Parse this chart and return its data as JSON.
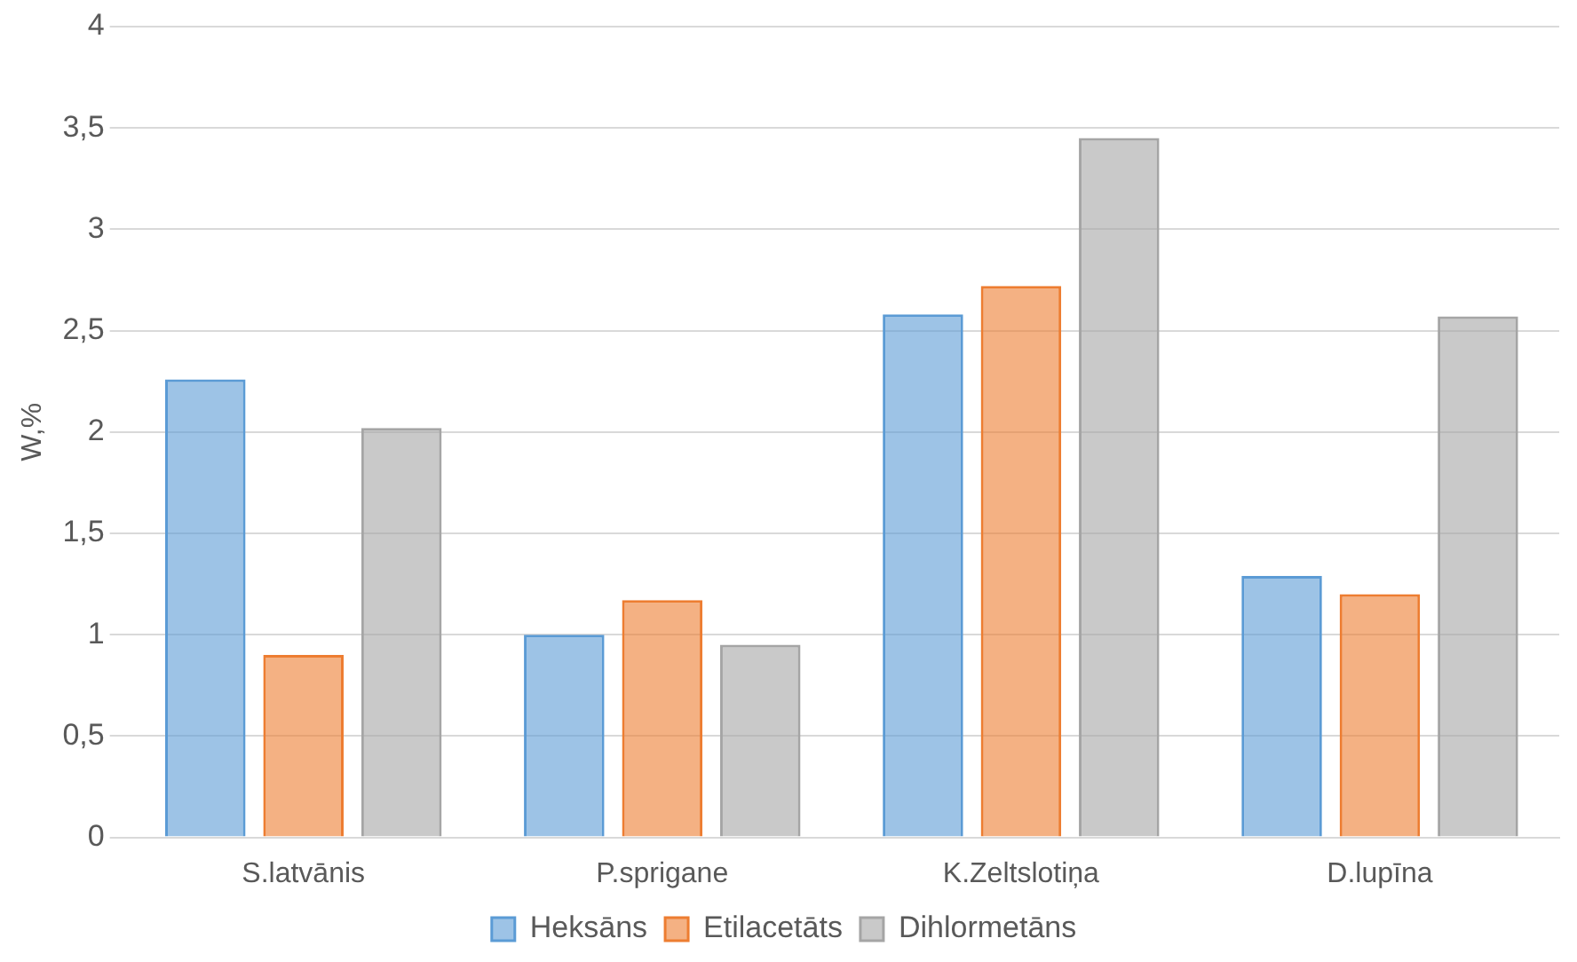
{
  "chart_data": {
    "type": "bar",
    "ylabel": "W,%",
    "categories": [
      "S.latvānis",
      "P.sprigane",
      "K.Zeltslotiņa",
      "D.lupīna"
    ],
    "series": [
      {
        "name": "Heksāns",
        "color": "#5b9bd5",
        "values": [
          2.26,
          1.0,
          2.58,
          1.29
        ]
      },
      {
        "name": "Etilacetāts",
        "color": "#ed7d31",
        "values": [
          0.9,
          1.17,
          2.72,
          1.2
        ]
      },
      {
        "name": "Dihlormetāns",
        "color": "#a5a5a5",
        "values": [
          2.02,
          0.95,
          3.45,
          2.57
        ]
      }
    ],
    "ylim": [
      0,
      4
    ],
    "yticks": [
      0,
      {
        "value": 0.5,
        "label": "0,5"
      },
      1,
      {
        "value": 1.5,
        "label": "1,5"
      },
      2,
      {
        "value": 2.5,
        "label": "2,5"
      },
      3,
      {
        "value": 3.5,
        "label": "3,5"
      },
      4
    ],
    "grid": "y",
    "legend": "bottom"
  }
}
